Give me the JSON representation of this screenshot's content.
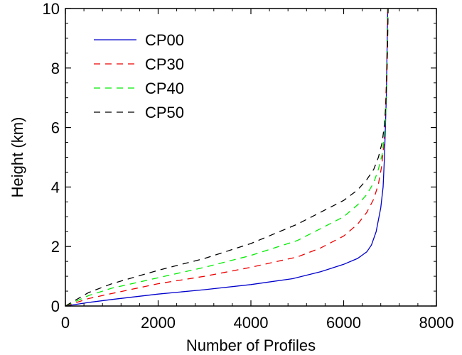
{
  "chart_data": {
    "type": "line",
    "title": "",
    "xlabel": "Number of Profiles",
    "ylabel": "Height (km)",
    "xlim": [
      0,
      8000
    ],
    "ylim": [
      0,
      10
    ],
    "xticks": [
      0,
      2000,
      4000,
      6000,
      8000
    ],
    "yticks": [
      0,
      2,
      4,
      6,
      8,
      10
    ],
    "grid": false,
    "legend_position": "top-left",
    "series": [
      {
        "name": "CP00",
        "color": "#0000cc",
        "dash": "solid",
        "x": [
          0,
          500,
          1000,
          2000,
          3000,
          4000,
          4900,
          5500,
          6000,
          6300,
          6500,
          6600,
          6700,
          6800,
          6850,
          6880,
          6900,
          6920,
          6930,
          6940,
          6950
        ],
        "y": [
          0,
          0.12,
          0.22,
          0.4,
          0.55,
          0.72,
          0.92,
          1.15,
          1.4,
          1.6,
          1.82,
          2.05,
          2.5,
          3.3,
          4.0,
          5.0,
          6.0,
          7.0,
          8.0,
          9.0,
          10.0
        ]
      },
      {
        "name": "CP30",
        "color": "#ee0000",
        "dash": "dashed",
        "x": [
          0,
          500,
          1000,
          2000,
          3000,
          4000,
          5000,
          5500,
          6000,
          6300,
          6500,
          6650,
          6750,
          6820,
          6870,
          6900,
          6920,
          6935,
          6950
        ],
        "y": [
          0,
          0.25,
          0.42,
          0.75,
          1.0,
          1.3,
          1.65,
          1.95,
          2.35,
          2.75,
          3.15,
          3.6,
          4.1,
          4.7,
          5.5,
          6.5,
          7.5,
          8.5,
          10.0
        ]
      },
      {
        "name": "CP40",
        "color": "#00ee00",
        "dash": "dashed",
        "x": [
          0,
          500,
          1000,
          2000,
          3000,
          4000,
          5000,
          5500,
          6000,
          6300,
          6500,
          6650,
          6750,
          6830,
          6880,
          6910,
          6930,
          6945,
          6955
        ],
        "y": [
          0,
          0.35,
          0.6,
          0.95,
          1.3,
          1.7,
          2.2,
          2.6,
          3.0,
          3.4,
          3.75,
          4.15,
          4.6,
          5.1,
          5.8,
          6.6,
          7.6,
          8.6,
          10.0
        ]
      },
      {
        "name": "CP50",
        "color": "#000000",
        "dash": "dashed",
        "x": [
          0,
          500,
          1000,
          2000,
          3000,
          4000,
          5000,
          5500,
          6000,
          6300,
          6500,
          6650,
          6750,
          6830,
          6880,
          6910,
          6930,
          6945,
          6960
        ],
        "y": [
          0,
          0.45,
          0.75,
          1.2,
          1.6,
          2.1,
          2.75,
          3.15,
          3.55,
          3.9,
          4.25,
          4.6,
          5.0,
          5.5,
          6.1,
          6.8,
          7.7,
          8.7,
          10.0
        ]
      }
    ]
  }
}
